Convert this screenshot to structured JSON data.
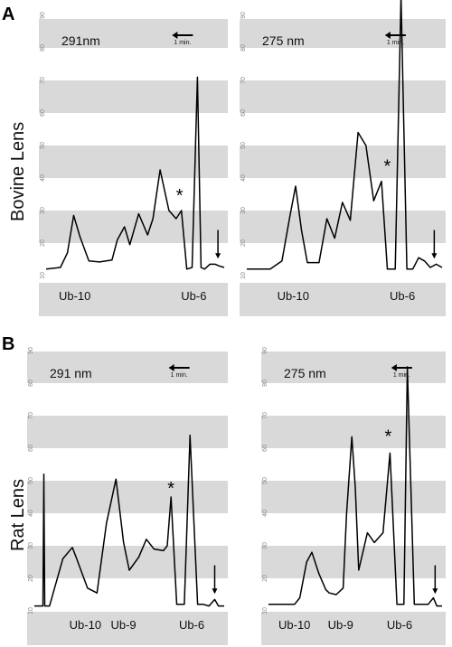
{
  "figure": {
    "panel_a_letter": "A",
    "panel_b_letter": "B",
    "row_a_label": "Bovine Lens",
    "row_b_label": "Rat Lens"
  },
  "chart_data": [
    {
      "type": "line",
      "panel": "A-left",
      "wavelength": "291nm",
      "scale_label": "1 min.",
      "y_ticks": [
        "10",
        "20",
        "30",
        "40",
        "50",
        "60",
        "70",
        "80",
        "90"
      ],
      "ylim": [
        10,
        96
      ],
      "grid": "alternating-bands",
      "peak_labels": [
        "Ub-10",
        "Ub-6"
      ],
      "star": "*",
      "series": [
        {
          "x": [
            0,
            0.08,
            0.12,
            0.155,
            0.19,
            0.24,
            0.3,
            0.37,
            0.4,
            0.44,
            0.47,
            0.52,
            0.57,
            0.6,
            0.64,
            0.69,
            0.73,
            0.76,
            0.79,
            0.82,
            0.85,
            0.87,
            0.89,
            0.92,
            0.95,
            0.97,
            1
          ],
          "y": [
            12,
            12.5,
            17,
            28.5,
            22,
            14.5,
            14.2,
            14.8,
            21,
            25,
            19.5,
            29,
            22.5,
            27.5,
            42.5,
            30,
            27.5,
            30,
            12,
            12.5,
            71,
            12.5,
            12,
            13.5,
            13.5,
            13,
            12.5
          ]
        }
      ],
      "marker": {
        "star_x": 0.75,
        "star_y": 35,
        "arrow_x": 0.965
      }
    },
    {
      "type": "line",
      "panel": "A-right",
      "wavelength": "275 nm",
      "scale_label": "1 min.",
      "y_ticks": [
        "10",
        "20",
        "30",
        "40",
        "50",
        "60",
        "70",
        "80",
        "90"
      ],
      "ylim": [
        10,
        96
      ],
      "grid": "alternating-bands",
      "peak_labels": [
        "Ub-10",
        "Ub-6"
      ],
      "star": "*",
      "series": [
        {
          "x": [
            0,
            0.12,
            0.18,
            0.22,
            0.25,
            0.28,
            0.31,
            0.37,
            0.41,
            0.45,
            0.49,
            0.53,
            0.57,
            0.61,
            0.65,
            0.69,
            0.72,
            0.76,
            0.79,
            0.82,
            0.85,
            0.88,
            0.91,
            0.94,
            0.97,
            1
          ],
          "y": [
            12,
            12,
            14.5,
            28,
            37.5,
            24,
            14,
            14,
            27.5,
            21.5,
            32.5,
            27,
            54,
            50,
            33,
            39,
            12,
            12,
            96,
            12,
            12,
            15.5,
            14.5,
            12.5,
            13.5,
            12.5
          ]
        }
      ],
      "marker": {
        "star_x": 0.72,
        "star_y": 44,
        "arrow_x": 0.96
      }
    },
    {
      "type": "line",
      "panel": "B-left",
      "wavelength": "291 nm",
      "scale_label": "1 min.",
      "y_ticks": [
        "10",
        "20",
        "30",
        "40",
        "50",
        "60",
        "70",
        "80",
        "90"
      ],
      "ylim": [
        10,
        96
      ],
      "grid": "alternating-bands",
      "peak_labels": [
        "Ub-10",
        "Ub-9",
        "Ub-6"
      ],
      "star": "*",
      "series": [
        {
          "x": [
            0,
            0.045,
            0.05,
            0.055,
            0.06,
            0.08,
            0.15,
            0.2,
            0.22,
            0.28,
            0.33,
            0.38,
            0.43,
            0.47,
            0.5,
            0.55,
            0.59,
            0.63,
            0.68,
            0.7,
            0.72,
            0.75,
            0.79,
            0.82,
            0.86,
            0.89,
            0.92,
            0.95,
            0.97,
            1
          ],
          "y": [
            11.5,
            11.5,
            52,
            11.5,
            11.5,
            11.5,
            26,
            29.5,
            26.5,
            17,
            15.5,
            37,
            50.5,
            31,
            22.5,
            26.5,
            32,
            29,
            28.5,
            30,
            45,
            12,
            12,
            64,
            12,
            12,
            11.5,
            13.5,
            11.5,
            11.5
          ]
        }
      ],
      "marker": {
        "star_x": 0.72,
        "star_y": 48,
        "arrow_x": 0.95
      }
    },
    {
      "type": "line",
      "panel": "B-right",
      "wavelength": "275 nm",
      "scale_label": "1 min.",
      "y_ticks": [
        "10",
        "20",
        "30",
        "40",
        "50",
        "60",
        "70",
        "80",
        "90"
      ],
      "ylim": [
        10,
        96
      ],
      "grid": "alternating-bands",
      "peak_labels": [
        "Ub-10",
        "Ub-9",
        "Ub-6"
      ],
      "star": "*",
      "series": [
        {
          "x": [
            0,
            0.15,
            0.18,
            0.22,
            0.25,
            0.29,
            0.33,
            0.35,
            0.39,
            0.43,
            0.45,
            0.48,
            0.5,
            0.52,
            0.57,
            0.61,
            0.66,
            0.7,
            0.74,
            0.78,
            0.8,
            0.84,
            0.86,
            0.89,
            0.92,
            0.95,
            0.97,
            1
          ],
          "y": [
            12,
            12,
            14,
            25,
            28,
            21.5,
            16.5,
            15.5,
            15,
            17,
            40,
            63.5,
            48,
            22.5,
            34,
            31,
            34,
            58.5,
            12,
            12,
            85,
            12,
            12,
            12,
            12,
            14,
            11.5,
            11.5
          ]
        }
      ],
      "marker": {
        "star_x": 0.69,
        "star_y": 64,
        "arrow_x": 0.96
      }
    }
  ]
}
